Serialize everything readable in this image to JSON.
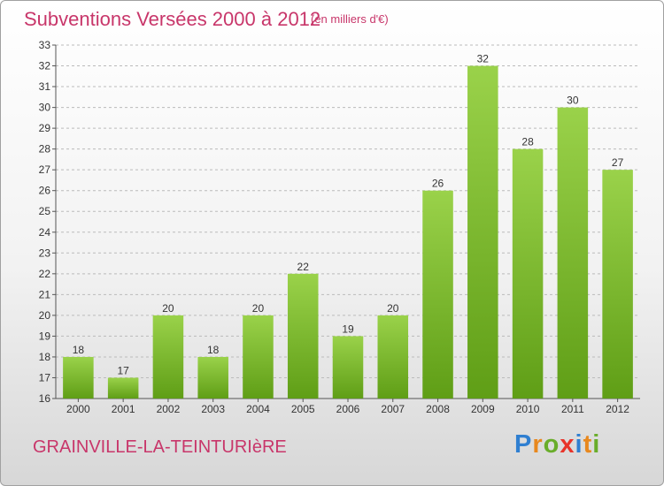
{
  "header": {
    "title": "Subventions Versées 2000 à 2012",
    "unit": "(en milliers d'€)"
  },
  "footer": {
    "location": "GRAINVILLE-LA-TEINTURIèRE",
    "logo_letters": [
      "P",
      "r",
      "o",
      "x",
      "i",
      "t",
      "i"
    ]
  },
  "colors": {
    "accent_text": "#c8366a",
    "bar_top": "#9ad24a",
    "bar_bottom": "#5f9e16",
    "grid": "#bbbbbb"
  },
  "chart_data": {
    "type": "bar",
    "title": "Subventions Versées 2000 à 2012",
    "subtitle": "(en milliers d'€)",
    "categories": [
      "2000",
      "2001",
      "2002",
      "2003",
      "2004",
      "2005",
      "2006",
      "2007",
      "2008",
      "2009",
      "2010",
      "2011",
      "2012"
    ],
    "values": [
      18,
      17,
      20,
      18,
      20,
      22,
      19,
      20,
      26,
      32,
      28,
      30,
      27
    ],
    "ylim": [
      16,
      33
    ],
    "yticks": [
      16,
      17,
      18,
      19,
      20,
      21,
      22,
      23,
      24,
      25,
      26,
      27,
      28,
      29,
      30,
      31,
      32,
      33
    ],
    "grid": "horizontal dashed",
    "legend": "none",
    "xlabel": "",
    "ylabel": ""
  }
}
